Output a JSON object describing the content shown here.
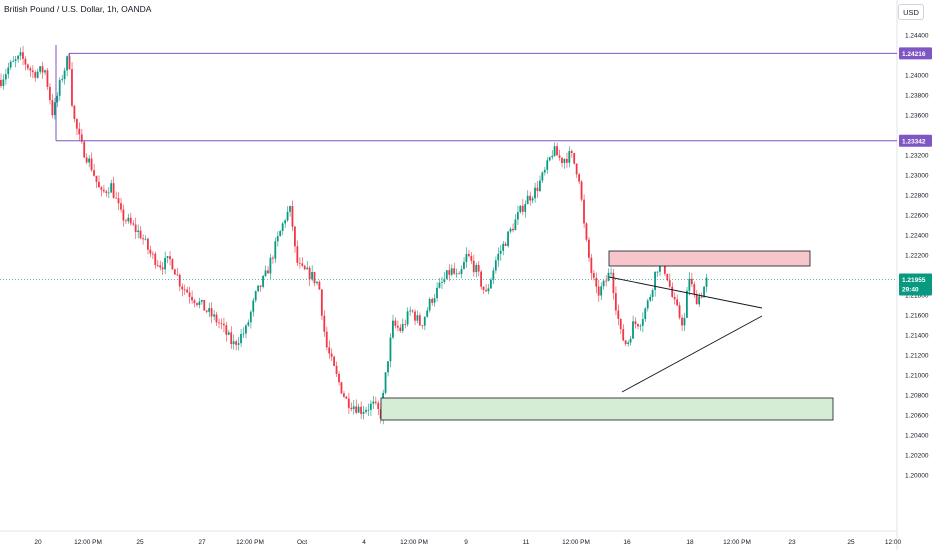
{
  "header": {
    "title": "British Pound / U.S. Dollar, 1h, OANDA",
    "currency_button": "USD"
  },
  "chart_data": {
    "type": "candlestick",
    "y_axis": {
      "ticks": [
        "1.24400",
        "1.24000",
        "1.23800",
        "1.23600",
        "1.23200",
        "1.23000",
        "1.22800",
        "1.22600",
        "1.22400",
        "1.22200",
        "1.21800",
        "1.21600",
        "1.21400",
        "1.21200",
        "1.21000",
        "1.20800",
        "1.20600",
        "1.20400",
        "1.20200",
        "1.20000"
      ],
      "tick_values": [
        1.244,
        1.24,
        1.238,
        1.236,
        1.232,
        1.23,
        1.228,
        1.226,
        1.224,
        1.222,
        1.218,
        1.216,
        1.214,
        1.212,
        1.21,
        1.208,
        1.206,
        1.204,
        1.202,
        1.2
      ]
    },
    "x_axis": {
      "ticks": [
        "20",
        "12:00 PM",
        "25",
        "27",
        "12:00 PM",
        "Oct",
        "4",
        "12:00 PM",
        "9",
        "11",
        "12:00 PM",
        "16",
        "18",
        "12:00 PM",
        "23",
        "25",
        "12:00"
      ]
    },
    "levels": [
      {
        "label": "1.24216",
        "value": 1.24216,
        "color": "#7e57c2"
      },
      {
        "label": "1.23342",
        "value": 1.23342,
        "color": "#7e57c2"
      }
    ],
    "last_price": {
      "label": "1.21955",
      "countdown": "29:40",
      "value": 1.21955,
      "color": "#089981"
    },
    "zones": [
      {
        "name": "resistance",
        "y1": 1.2209,
        "y2": 1.2224,
        "color": "#f7c6cb"
      },
      {
        "name": "support",
        "y1": 1.2055,
        "y2": 1.2077,
        "color": "#d4edd4"
      }
    ],
    "up_color": "#089981",
    "down_color": "#f23645",
    "path": [
      [
        0,
        1.2395
      ],
      [
        8,
        1.2408
      ],
      [
        20,
        1.2418
      ],
      [
        32,
        1.2402
      ],
      [
        44,
        1.2405
      ],
      [
        52,
        1.236
      ],
      [
        60,
        1.2395
      ],
      [
        68,
        1.242
      ],
      [
        72,
        1.236
      ],
      [
        80,
        1.233
      ],
      [
        90,
        1.231
      ],
      [
        100,
        1.228
      ],
      [
        110,
        1.229
      ],
      [
        120,
        1.226
      ],
      [
        130,
        1.225
      ],
      [
        140,
        1.224
      ],
      [
        150,
        1.222
      ],
      [
        160,
        1.221
      ],
      [
        170,
        1.2215
      ],
      [
        180,
        1.219
      ],
      [
        190,
        1.218
      ],
      [
        200,
        1.217
      ],
      [
        210,
        1.216
      ],
      [
        220,
        1.215
      ],
      [
        232,
        1.213
      ],
      [
        245,
        1.2145
      ],
      [
        255,
        1.218
      ],
      [
        265,
        1.22
      ],
      [
        275,
        1.223
      ],
      [
        285,
        1.226
      ],
      [
        290,
        1.2265
      ],
      [
        295,
        1.2215
      ],
      [
        300,
        1.2205
      ],
      [
        310,
        1.22
      ],
      [
        318,
        1.219
      ],
      [
        325,
        1.213
      ],
      [
        335,
        1.21
      ],
      [
        345,
        1.2075
      ],
      [
        360,
        1.2065
      ],
      [
        372,
        1.207
      ],
      [
        380,
        1.206
      ],
      [
        386,
        1.211
      ],
      [
        392,
        1.215
      ],
      [
        400,
        1.2145
      ],
      [
        410,
        1.2165
      ],
      [
        420,
        1.215
      ],
      [
        430,
        1.2175
      ],
      [
        440,
        1.219
      ],
      [
        450,
        1.2205
      ],
      [
        458,
        1.2195
      ],
      [
        466,
        1.222
      ],
      [
        475,
        1.2205
      ],
      [
        485,
        1.218
      ],
      [
        495,
        1.2215
      ],
      [
        505,
        1.2235
      ],
      [
        515,
        1.2255
      ],
      [
        525,
        1.2275
      ],
      [
        535,
        1.2285
      ],
      [
        545,
        1.2305
      ],
      [
        552,
        1.2325
      ],
      [
        560,
        1.2315
      ],
      [
        570,
        1.232
      ],
      [
        578,
        1.23
      ],
      [
        584,
        1.224
      ],
      [
        590,
        1.2205
      ],
      [
        596,
        1.218
      ],
      [
        603,
        1.219
      ],
      [
        610,
        1.2205
      ],
      [
        615,
        1.217
      ],
      [
        620,
        1.214
      ],
      [
        626,
        1.213
      ],
      [
        632,
        1.215
      ],
      [
        640,
        1.2155
      ],
      [
        648,
        1.2175
      ],
      [
        655,
        1.2205
      ],
      [
        660,
        1.2215
      ],
      [
        666,
        1.22
      ],
      [
        672,
        1.2175
      ],
      [
        678,
        1.216
      ],
      [
        683,
        1.215
      ],
      [
        688,
        1.22
      ],
      [
        694,
        1.2175
      ],
      [
        700,
        1.218
      ],
      [
        706,
        1.2195
      ]
    ]
  }
}
